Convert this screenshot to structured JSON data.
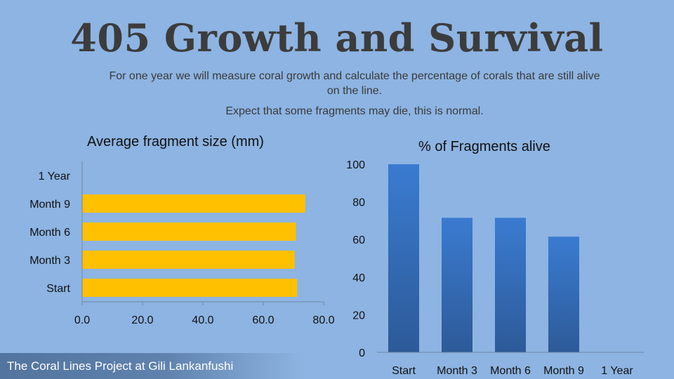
{
  "title": "405 Growth and Survival",
  "subtitle_line_1": "For one year we will measure coral growth and calculate the percentage of corals that are still alive on the line.",
  "subtitle_line_2": "Expect that some fragments may die, this is normal.",
  "footer": "The Coral Lines Project at Gili Lankanfushi",
  "colors": {
    "background": "#8db4e2",
    "bar_fill": "#ffc000",
    "column_fill_top": "#3a7bd0",
    "column_fill_bottom": "#2d5a98",
    "axis": "#6f87a6"
  },
  "chart_data": [
    {
      "type": "bar",
      "orientation": "horizontal",
      "title": "Average fragment size (mm)",
      "categories": [
        "Start",
        "Month 3",
        "Month 6",
        "Month 9",
        "1 Year"
      ],
      "values": [
        71.2,
        70.4,
        70.8,
        73.9,
        null
      ],
      "xlim": [
        0,
        80
      ],
      "x_ticks": [
        "0.0",
        "20.0",
        "40.0",
        "60.0",
        "80.0"
      ],
      "grid": false
    },
    {
      "type": "bar",
      "orientation": "vertical",
      "title": "% of Fragments alive",
      "categories": [
        "Start",
        "Month 3",
        "Month 6",
        "Month 9",
        "1 Year"
      ],
      "values": [
        100,
        71.5,
        71.5,
        61.5,
        null
      ],
      "ylim": [
        0,
        100
      ],
      "y_ticks": [
        "0",
        "20",
        "40",
        "60",
        "80",
        "100"
      ],
      "grid": false
    }
  ]
}
